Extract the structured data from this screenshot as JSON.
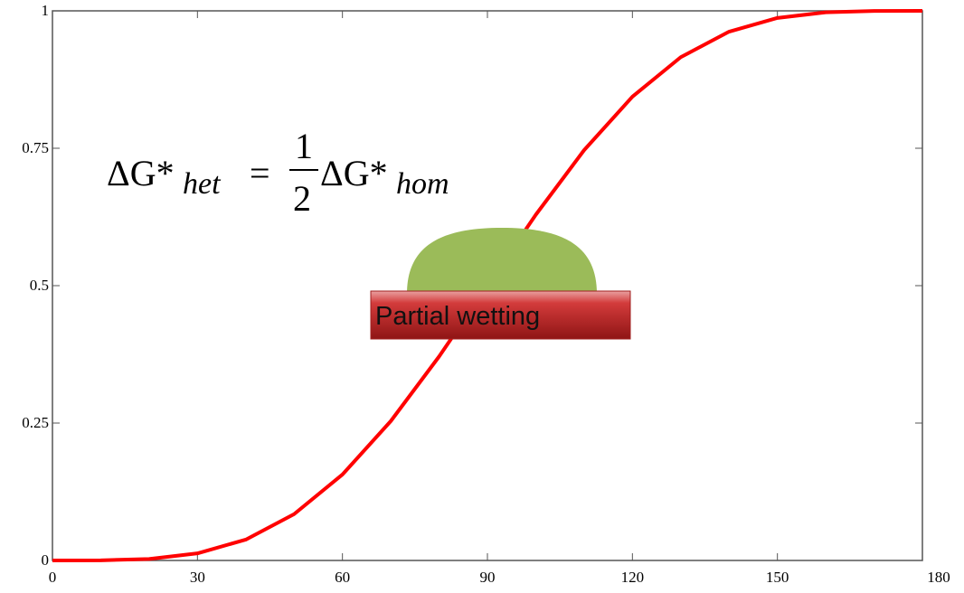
{
  "chart_data": {
    "type": "line",
    "x": [
      0,
      10,
      20,
      30,
      40,
      50,
      60,
      70,
      80,
      90,
      100,
      110,
      120,
      130,
      140,
      150,
      160,
      170,
      180
    ],
    "series": [
      {
        "color": "#ff0000",
        "values": [
          0,
          0.0002,
          0.0027,
          0.0129,
          0.0379,
          0.0843,
          0.1563,
          0.2535,
          0.3711,
          0.5,
          0.6289,
          0.7465,
          0.8438,
          0.9157,
          0.9621,
          0.9871,
          0.9973,
          0.9998,
          1
        ]
      }
    ],
    "xlim": [
      0,
      180
    ],
    "xticks": [
      0,
      30,
      60,
      90,
      120,
      150,
      180
    ],
    "ylim": [
      0,
      1
    ],
    "yticks": [
      0,
      0.25,
      0.5,
      0.75,
      1
    ],
    "annotations": {
      "equation": {
        "lhs": "ΔG*",
        "lhs_sub": "het",
        "equals": "=",
        "numerator": "1",
        "denominator": "2",
        "rhs": "ΔG*",
        "rhs_sub": "hom"
      },
      "label": "Partial wetting"
    }
  }
}
